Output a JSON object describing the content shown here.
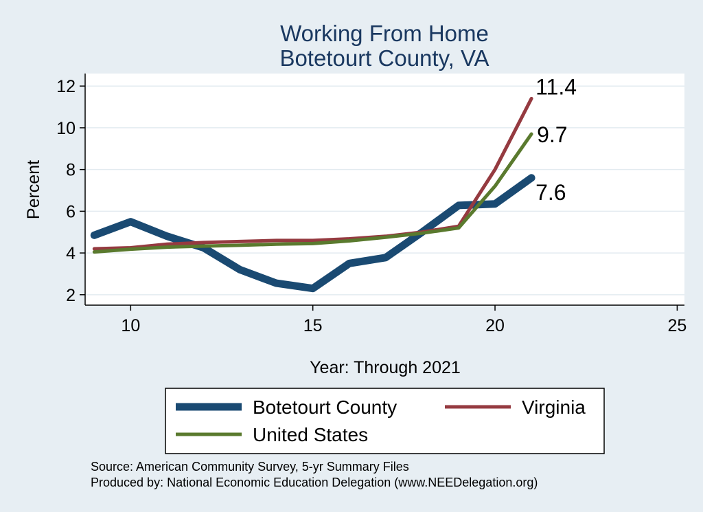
{
  "chart_data": {
    "type": "line",
    "title": [
      "Working From Home",
      "Botetourt County, VA"
    ],
    "xlabel": "Year: Through 2021",
    "ylabel": "Percent",
    "xlim": [
      8.75,
      25.2
    ],
    "ylim": [
      1.5,
      12.6
    ],
    "xticks": [
      10,
      15,
      20,
      25
    ],
    "yticks": [
      2,
      4,
      6,
      8,
      10,
      12
    ],
    "grid": true,
    "legend_position": "bottom",
    "series": [
      {
        "name": "Botetourt County",
        "color": "#1a4a72",
        "x": [
          9,
          10,
          11,
          12,
          13,
          14,
          15,
          16,
          17,
          18,
          19,
          20,
          21
        ],
        "y": [
          4.85,
          5.5,
          4.8,
          4.25,
          3.2,
          2.55,
          2.3,
          3.5,
          3.78,
          5.0,
          6.28,
          6.35,
          7.6
        ],
        "end_label": "7.6"
      },
      {
        "name": "Virginia",
        "color": "#953a40",
        "x": [
          9,
          10,
          11,
          12,
          13,
          14,
          15,
          16,
          17,
          18,
          19,
          20,
          21
        ],
        "y": [
          4.2,
          4.25,
          4.42,
          4.5,
          4.55,
          4.6,
          4.6,
          4.68,
          4.8,
          5.0,
          5.28,
          8.0,
          11.4
        ],
        "end_label": "11.4"
      },
      {
        "name": "United States",
        "color": "#5a7a2e",
        "x": [
          9,
          10,
          11,
          12,
          13,
          14,
          15,
          16,
          17,
          18,
          19,
          20,
          21
        ],
        "y": [
          4.05,
          4.18,
          4.28,
          4.33,
          4.37,
          4.42,
          4.45,
          4.58,
          4.75,
          4.95,
          5.2,
          7.2,
          9.7
        ],
        "end_label": "9.7"
      }
    ],
    "notes": [
      "Source: American Community Survey, 5-yr Summary Files",
      "Produced by: National Economic Education Delegation (www.NEEDelegation.org)"
    ]
  }
}
